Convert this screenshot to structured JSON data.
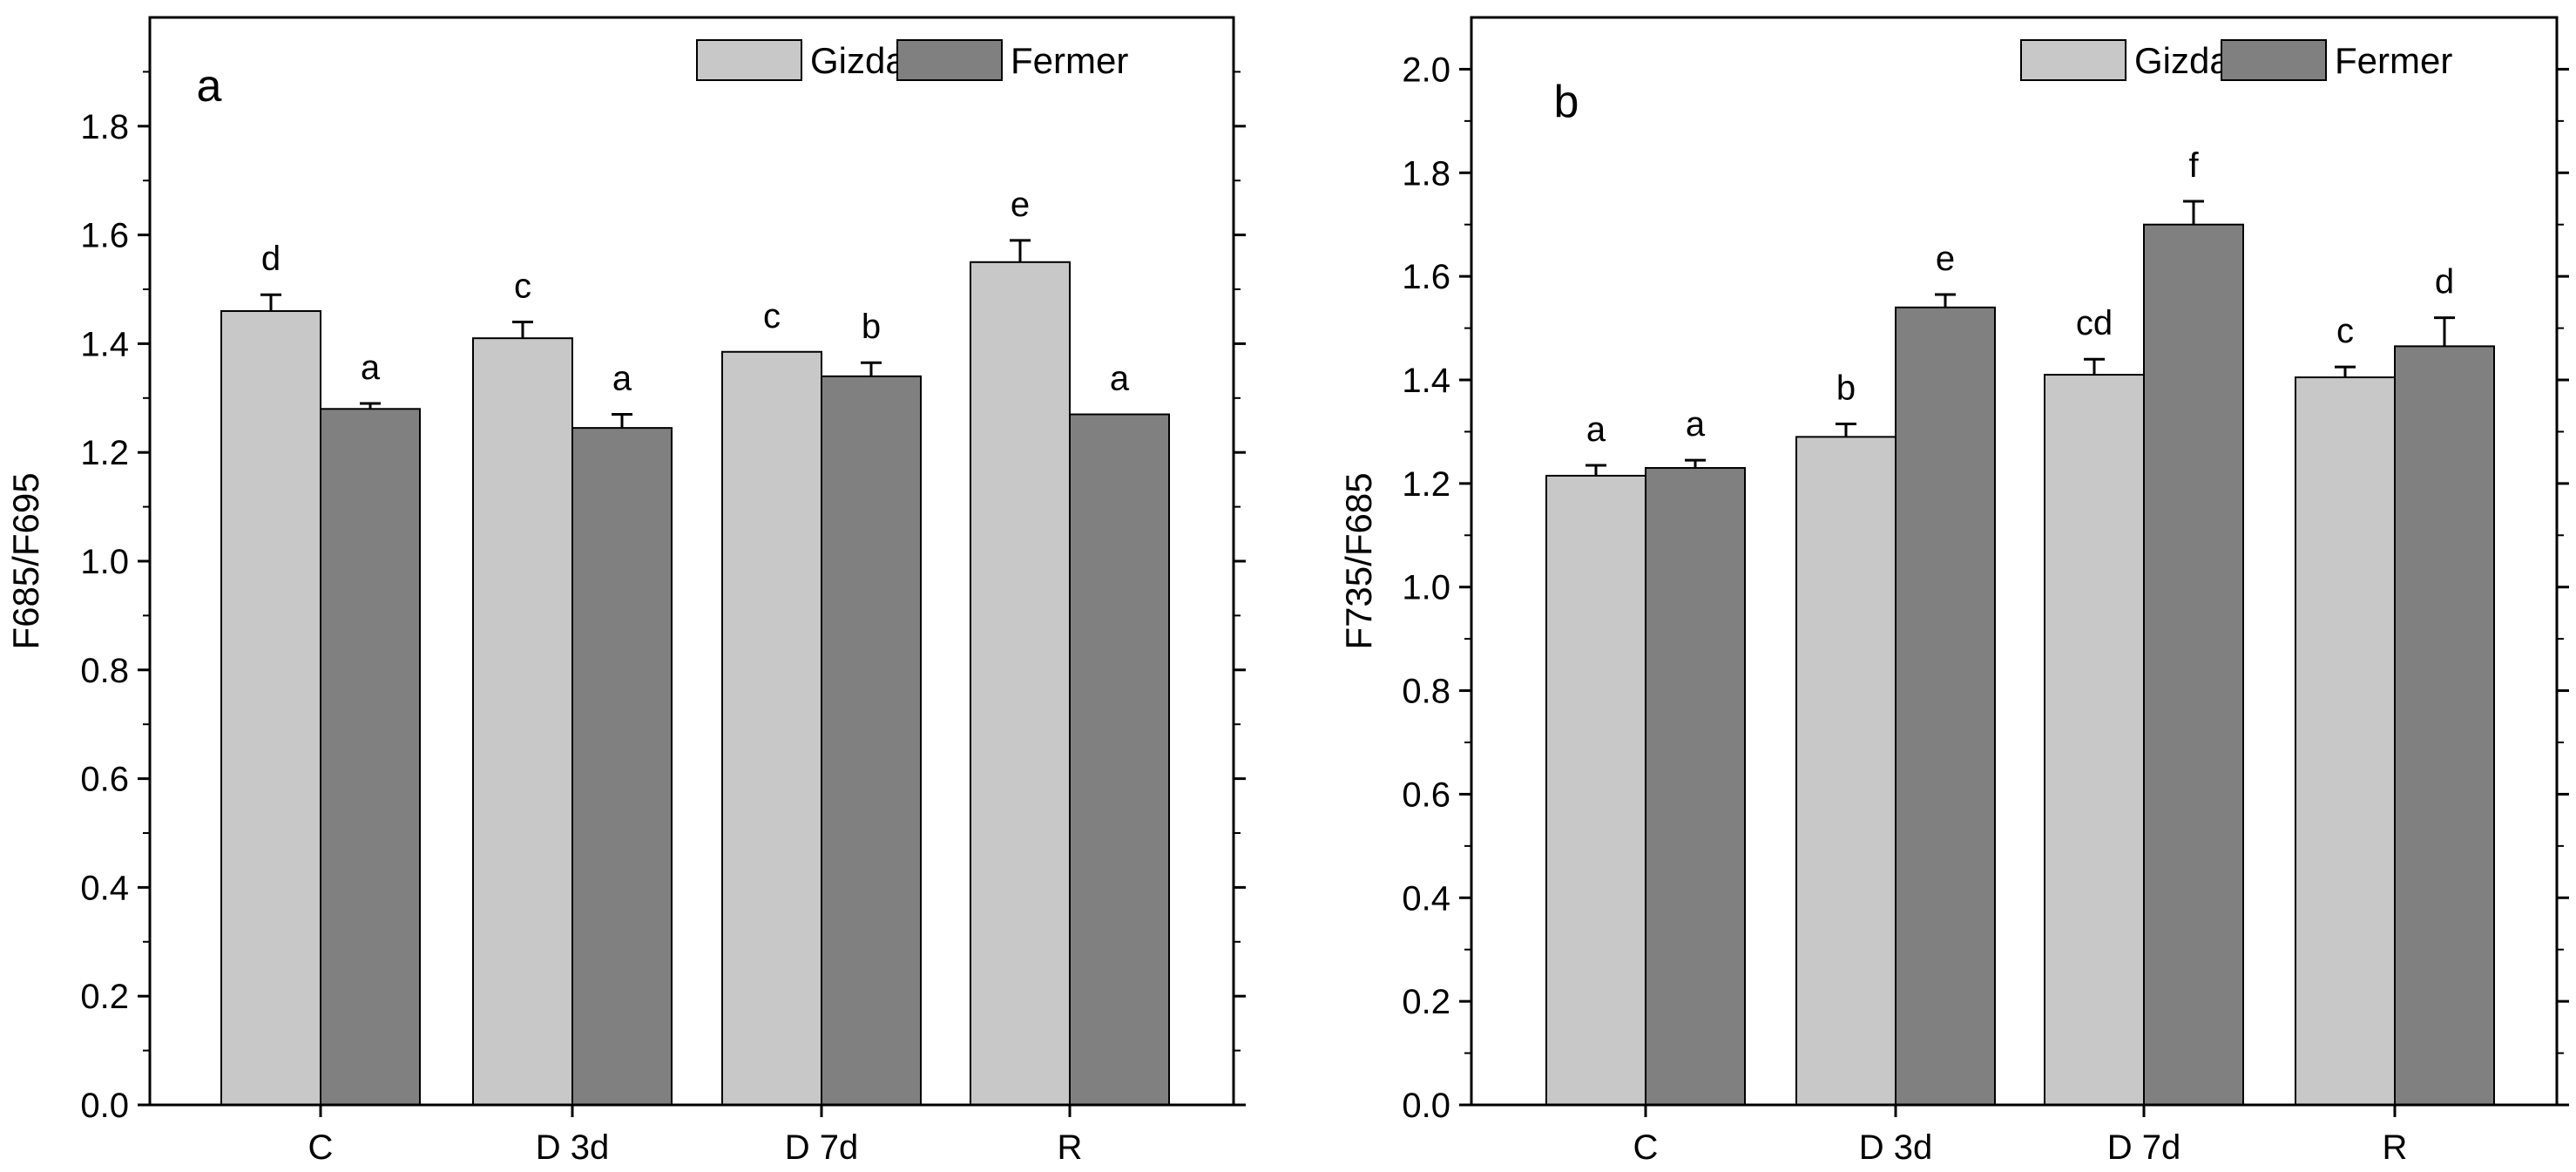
{
  "chart_data": [
    {
      "type": "bar",
      "panel_label": "a",
      "title": "",
      "xlabel": "",
      "ylabel": "F685/F695",
      "ylim": [
        0,
        2.0
      ],
      "yticks": [
        "0.0",
        "0.2",
        "0.4",
        "0.6",
        "0.8",
        "1.0",
        "1.2",
        "1.4",
        "1.6",
        "1.8"
      ],
      "categories": [
        "C",
        "D 3d",
        "D 7d",
        "R"
      ],
      "legend_position": "top-right",
      "series": [
        {
          "name": "Gizda",
          "color": "#c8c8c8",
          "values": [
            1.46,
            1.41,
            1.385,
            1.55
          ],
          "errors": [
            0.03,
            0.03,
            0.0,
            0.04
          ],
          "letters": [
            "d",
            "c",
            "c",
            "e"
          ]
        },
        {
          "name": "Fermer",
          "color": "#808080",
          "values": [
            1.28,
            1.245,
            1.34,
            1.27
          ],
          "errors": [
            0.01,
            0.025,
            0.025,
            0.0
          ],
          "letters": [
            "a",
            "a",
            "b",
            "a"
          ]
        }
      ]
    },
    {
      "type": "bar",
      "panel_label": "b",
      "title": "",
      "xlabel": "",
      "ylabel": "F735/F685",
      "ylim": [
        0,
        2.1
      ],
      "yticks": [
        "0.0",
        "0.2",
        "0.4",
        "0.6",
        "0.8",
        "1.0",
        "1.2",
        "1.4",
        "1.6",
        "1.8",
        "2.0"
      ],
      "categories": [
        "C",
        "D 3d",
        "D 7d",
        "R"
      ],
      "legend_position": "top-right",
      "series": [
        {
          "name": "Gizda",
          "color": "#c8c8c8",
          "values": [
            1.215,
            1.29,
            1.41,
            1.405
          ],
          "errors": [
            0.02,
            0.025,
            0.03,
            0.02
          ],
          "letters": [
            "a",
            "b",
            "cd",
            "c"
          ]
        },
        {
          "name": "Fermer",
          "color": "#808080",
          "values": [
            1.23,
            1.54,
            1.7,
            1.465
          ],
          "errors": [
            0.015,
            0.025,
            0.045,
            0.055
          ],
          "letters": [
            "a",
            "e",
            "f",
            "d"
          ]
        }
      ]
    }
  ]
}
